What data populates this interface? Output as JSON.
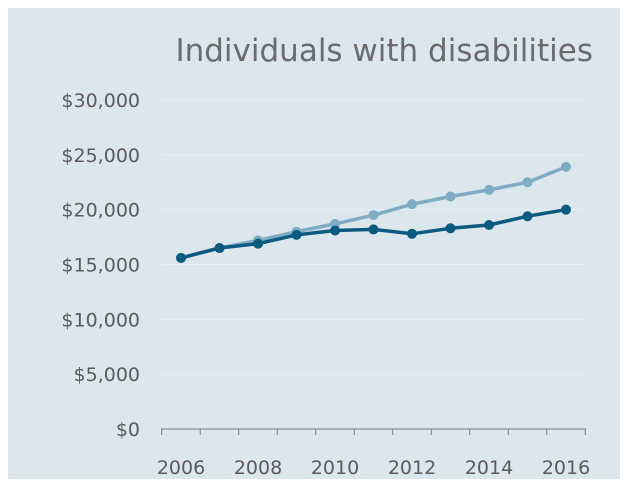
{
  "chart_data": {
    "type": "line",
    "title": "Individuals with disabilities",
    "xlabel": "",
    "ylabel": "",
    "x": [
      2006,
      2007,
      2008,
      2009,
      2010,
      2011,
      2012,
      2013,
      2014,
      2015,
      2016
    ],
    "xticks": [
      "2006",
      "2008",
      "2010",
      "2012",
      "2014",
      "2016"
    ],
    "ylim": [
      0,
      30000
    ],
    "yticks": [
      "$0",
      "$5,000",
      "$10,000",
      "$15,000",
      "$20,000",
      "$25,000",
      "$30,000"
    ],
    "grid": true,
    "legend": "none",
    "series": [
      {
        "color": "#7eacc2",
        "values": [
          15600,
          16500,
          17200,
          18000,
          18700,
          19500,
          20500,
          21200,
          21800,
          22500,
          23900
        ]
      },
      {
        "color": "#0b5a7f",
        "values": [
          15600,
          16500,
          16900,
          17700,
          18100,
          18200,
          17800,
          18300,
          18600,
          19400,
          20000
        ]
      }
    ]
  },
  "colors": {
    "background": "#dce6ed",
    "gridline": "#e8eef2",
    "axis": "#7a7a7a",
    "text": "#5b5b5b",
    "title": "#6b6b6b"
  }
}
